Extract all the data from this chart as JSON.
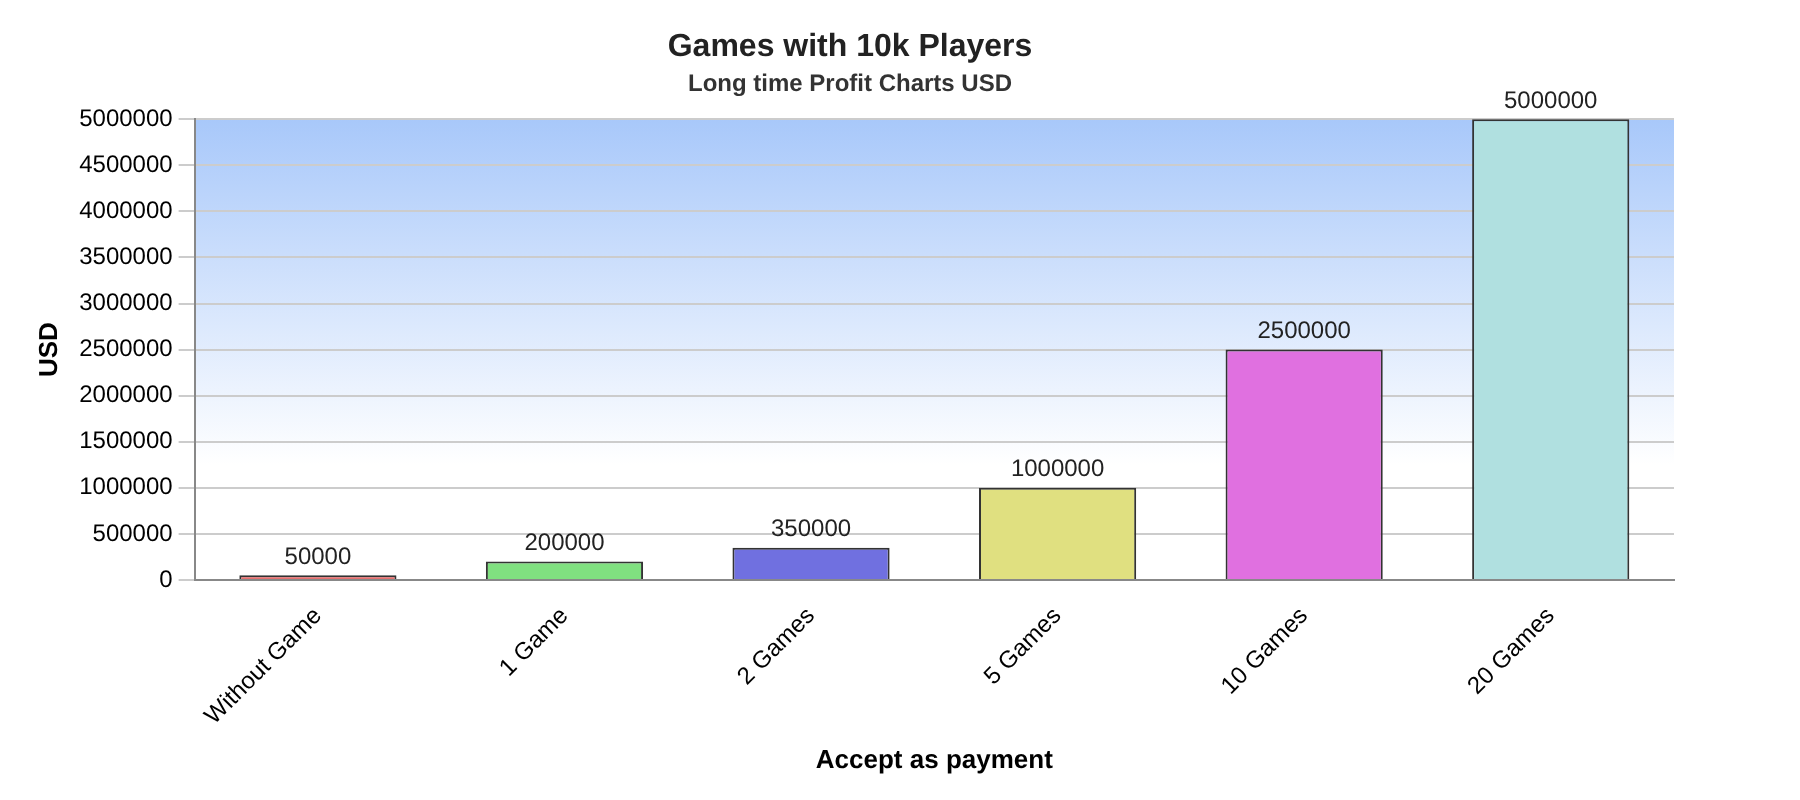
{
  "chart_data": {
    "type": "bar",
    "title": "Games with 10k Players",
    "subtitle": "Long time Profit Charts USD",
    "xlabel": "Accept as payment",
    "ylabel": "USD",
    "categories": [
      "Without Game",
      "1 Game",
      "2 Games",
      "5 Games",
      "10 Games",
      "20 Games"
    ],
    "values": [
      50000,
      200000,
      350000,
      1000000,
      2500000,
      5000000
    ],
    "colors": [
      "#e87070",
      "#80e080",
      "#7070e0",
      "#e0e080",
      "#e070e0",
      "#b0e0e0"
    ],
    "ylim": [
      0,
      5000000
    ],
    "yticks": [
      0,
      500000,
      1000000,
      1500000,
      2000000,
      2500000,
      3000000,
      3500000,
      4000000,
      4500000,
      5000000
    ],
    "grid": "y",
    "data_labels": true,
    "legend": false
  }
}
